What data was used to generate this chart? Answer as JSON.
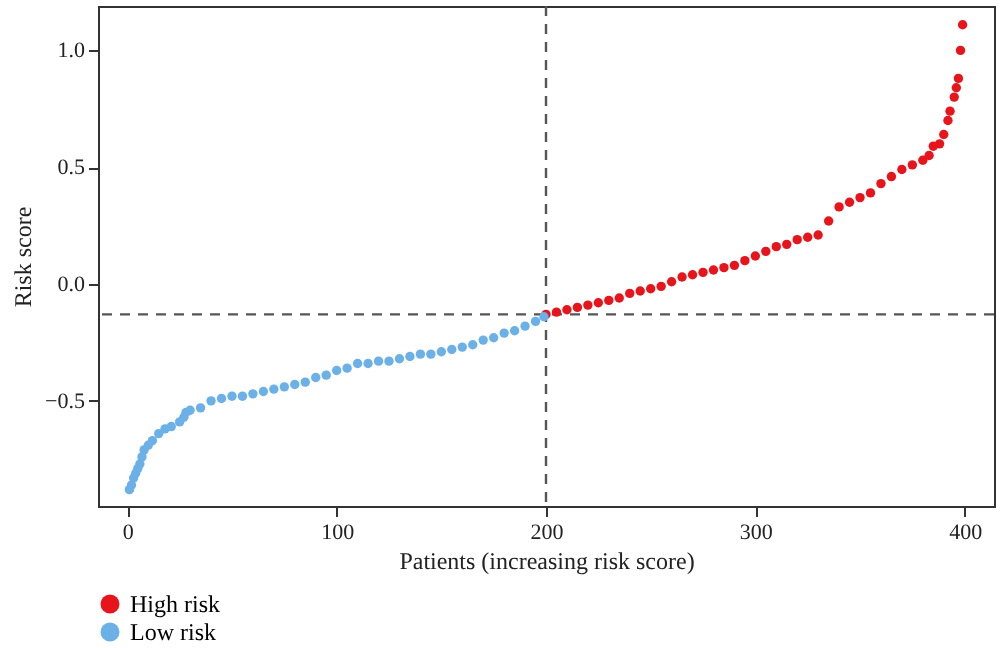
{
  "chart_data": {
    "type": "scatter",
    "xlabel": "Patients (increasing risk score)",
    "ylabel": "Risk score",
    "xlim": [
      -14,
      414
    ],
    "ylim": [
      -0.95,
      1.19
    ],
    "xticks": [
      0,
      100,
      200,
      300,
      400
    ],
    "yticks": [
      {
        "value": -0.5,
        "label": "−0.5"
      },
      {
        "value": 0,
        "label": "0.0"
      },
      {
        "value": 0.5,
        "label": "0.5"
      },
      {
        "value": 1,
        "label": "1.0"
      }
    ],
    "grid": false,
    "marker": "circle",
    "legend": "bottom left",
    "series": [
      {
        "name": "High risk",
        "color": "#e8141c",
        "x": [
          200,
          205,
          210,
          215,
          220,
          225,
          230,
          235,
          240,
          245,
          250,
          255,
          260,
          265,
          270,
          275,
          280,
          285,
          290,
          295,
          300,
          305,
          310,
          315,
          320,
          325,
          330,
          335,
          340,
          345,
          350,
          355,
          360,
          365,
          370,
          375,
          380,
          383,
          385,
          388,
          390,
          392,
          393,
          395,
          396,
          397,
          398,
          399
        ],
        "values": [
          -0.13,
          -0.12,
          -0.11,
          -0.1,
          -0.09,
          -0.08,
          -0.07,
          -0.06,
          -0.04,
          -0.03,
          -0.02,
          -0.01,
          0.01,
          0.03,
          0.04,
          0.05,
          0.06,
          0.07,
          0.08,
          0.1,
          0.12,
          0.14,
          0.16,
          0.17,
          0.19,
          0.2,
          0.21,
          0.27,
          0.33,
          0.35,
          0.37,
          0.39,
          0.43,
          0.46,
          0.49,
          0.51,
          0.53,
          0.55,
          0.59,
          0.6,
          0.64,
          0.7,
          0.74,
          0.8,
          0.84,
          0.88,
          1.0,
          1.11
        ]
      },
      {
        "name": "Low risk",
        "color": "#6cb0e8",
        "x": [
          1,
          2,
          3,
          4,
          5,
          6,
          7,
          8,
          10,
          12,
          15,
          18,
          21,
          25,
          27,
          28,
          30,
          35,
          40,
          45,
          50,
          55,
          60,
          65,
          70,
          75,
          80,
          85,
          90,
          95,
          100,
          105,
          110,
          115,
          120,
          125,
          130,
          135,
          140,
          145,
          150,
          155,
          160,
          165,
          170,
          175,
          180,
          185,
          190,
          195,
          199
        ],
        "values": [
          -0.88,
          -0.86,
          -0.83,
          -0.81,
          -0.79,
          -0.77,
          -0.74,
          -0.71,
          -0.69,
          -0.67,
          -0.64,
          -0.62,
          -0.61,
          -0.59,
          -0.57,
          -0.55,
          -0.54,
          -0.53,
          -0.5,
          -0.49,
          -0.48,
          -0.48,
          -0.47,
          -0.46,
          -0.45,
          -0.44,
          -0.43,
          -0.42,
          -0.4,
          -0.39,
          -0.37,
          -0.36,
          -0.34,
          -0.34,
          -0.33,
          -0.33,
          -0.32,
          -0.31,
          -0.3,
          -0.3,
          -0.29,
          -0.28,
          -0.27,
          -0.26,
          -0.24,
          -0.23,
          -0.21,
          -0.2,
          -0.18,
          -0.16,
          -0.14
        ]
      }
    ],
    "ref_lines": [
      {
        "axis": "x",
        "value": 200,
        "line_style": "dashed",
        "color": "#555555"
      },
      {
        "axis": "y",
        "value": -0.13,
        "line_style": "dashed",
        "color": "#555555"
      }
    ]
  }
}
